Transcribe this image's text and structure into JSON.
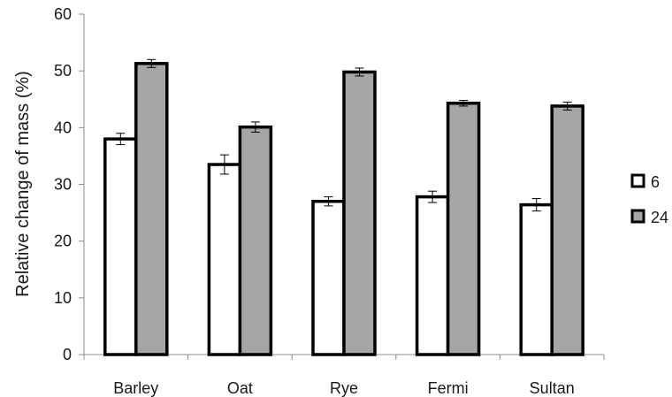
{
  "chart_data": {
    "type": "bar",
    "title": "",
    "xlabel": "",
    "ylabel": "Relative change of mass (%)",
    "ylim": [
      0,
      60
    ],
    "yticks": [
      0,
      10,
      20,
      30,
      40,
      50,
      60
    ],
    "grid": false,
    "legend_position": "right",
    "categories": [
      "Barley",
      "Oat",
      "Rye",
      "Fermi",
      "Sultan"
    ],
    "series": [
      {
        "name": "6",
        "color": "#ffffff",
        "values": [
          38.0,
          33.5,
          27.0,
          27.8,
          26.4
        ],
        "errors": [
          1.0,
          1.7,
          0.8,
          1.0,
          1.1
        ]
      },
      {
        "name": "24",
        "color": "#a6a6a6",
        "values": [
          51.3,
          40.1,
          49.8,
          44.3,
          43.8
        ],
        "errors": [
          0.7,
          0.9,
          0.7,
          0.5,
          0.7
        ]
      }
    ]
  }
}
